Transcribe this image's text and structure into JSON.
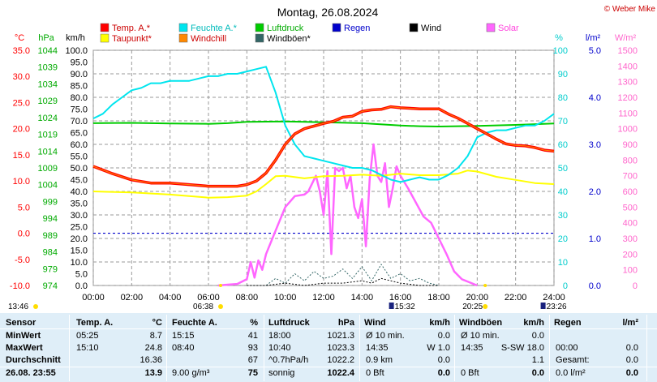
{
  "chart_data": {
    "type": "line",
    "title": "Montag, 26.08.2024",
    "copyright": "© Weber Mike",
    "x_ticks": [
      "00:00",
      "02:00",
      "04:00",
      "06:00",
      "08:00",
      "10:00",
      "12:00",
      "14:00",
      "16:00",
      "18:00",
      "20:00",
      "22:00",
      "24:00"
    ],
    "axes": {
      "temp": {
        "unit": "°C",
        "min": -10,
        "max": 35,
        "ticks": [
          "35.0",
          "30.0",
          "25.0",
          "20.0",
          "15.0",
          "10.0",
          "5.0",
          "0.0",
          "-5.0",
          "-10.0"
        ],
        "color": "#ff0000"
      },
      "pressure": {
        "unit": "hPa",
        "min": 974,
        "max": 1044,
        "ticks": [
          "1044",
          "1039",
          "1034",
          "1029",
          "1024",
          "1019",
          "1014",
          "1009",
          "1004",
          "999",
          "994",
          "989",
          "984",
          "979",
          "974"
        ],
        "color": "#00aa00"
      },
      "wind": {
        "unit": "km/h",
        "min": 0,
        "max": 100,
        "ticks": [
          "100.0",
          "95.0",
          "90.0",
          "85.0",
          "80.0",
          "75.0",
          "70.0",
          "65.0",
          "60.0",
          "55.0",
          "50.0",
          "45.0",
          "40.0",
          "35.0",
          "30.0",
          "25.0",
          "20.0",
          "15.0",
          "10.0",
          "5.0",
          "0.0"
        ],
        "color": "#000000"
      },
      "humidity": {
        "unit": "%",
        "min": 0,
        "max": 100,
        "ticks": [
          "100",
          "90",
          "80",
          "70",
          "60",
          "50",
          "40",
          "30",
          "20",
          "10",
          "0"
        ],
        "color": "#00cccc"
      },
      "rain": {
        "unit": "l/m²",
        "min": 0,
        "max": 5,
        "ticks": [
          "5.0",
          "4.0",
          "3.0",
          "2.0",
          "1.0",
          "0.0"
        ],
        "color": "#0000cc"
      },
      "solar": {
        "unit": "W/m²",
        "min": 0,
        "max": 1500,
        "ticks": [
          "1500",
          "1400",
          "1300",
          "1200",
          "1100",
          "1000",
          "900",
          "800",
          "700",
          "600",
          "500",
          "400",
          "300",
          "200",
          "100",
          "0"
        ],
        "color": "#ff66cc"
      }
    },
    "legend": [
      {
        "name": "Temp. A.*",
        "color": "#ff0000"
      },
      {
        "name": "Feuchte A.*",
        "color": "#00e5ee"
      },
      {
        "name": "Luftdruck",
        "color": "#00cc00"
      },
      {
        "name": "Regen",
        "color": "#0000cc"
      },
      {
        "name": "Wind",
        "color": "#000000"
      },
      {
        "name": "Solar",
        "color": "#ff66ff"
      },
      {
        "name": "Taupunkt*",
        "color": "#ffff00"
      },
      {
        "name": "Windchill",
        "color": "#ff8800"
      },
      {
        "name": "Windböen*",
        "color": "#336666"
      }
    ],
    "series": [
      {
        "name": "Temp. A.*",
        "axis": "temp",
        "color": "#ff0000",
        "x": [
          0,
          1,
          2,
          3,
          4,
          5,
          6,
          7,
          7.5,
          8,
          8.5,
          9,
          9.5,
          10,
          10.5,
          11,
          11.5,
          12,
          12.5,
          13,
          13.5,
          14,
          14.5,
          15,
          15.5,
          16,
          16.5,
          17,
          17.5,
          18,
          18.5,
          19,
          19.5,
          20,
          20.5,
          21,
          21.5,
          22,
          22.5,
          23,
          23.5,
          24
        ],
        "y": [
          12.8,
          11.4,
          10.2,
          9.6,
          9.6,
          9.3,
          9.0,
          9.0,
          9.0,
          9.3,
          10.0,
          11.5,
          14.0,
          17.0,
          19.0,
          20.0,
          20.5,
          21.0,
          21.4,
          22.2,
          22.4,
          23.3,
          23.6,
          23.7,
          24.2,
          24.0,
          23.9,
          23.8,
          23.8,
          23.8,
          22.8,
          22.0,
          21.0,
          20.0,
          19.0,
          18.0,
          17.1,
          16.8,
          16.7,
          16.4,
          15.9,
          15.7
        ]
      },
      {
        "name": "Feuchte A.*",
        "axis": "humidity",
        "color": "#00e5ee",
        "x": [
          0,
          0.5,
          1,
          1.5,
          2,
          2.5,
          3,
          3.5,
          4,
          5,
          6,
          6.5,
          7,
          7.5,
          8,
          8.5,
          9,
          9.5,
          10,
          10.5,
          11,
          11.5,
          12,
          12.5,
          13,
          13.5,
          14,
          14.5,
          15,
          15.5,
          16,
          16.5,
          17,
          17.5,
          18,
          18.5,
          19,
          19.5,
          20,
          20.5,
          21,
          21.5,
          22,
          22.5,
          23,
          23.5,
          24
        ],
        "y": [
          71,
          73,
          77,
          80,
          83,
          84,
          86,
          86,
          87,
          87,
          89,
          89,
          90,
          90,
          91,
          92,
          93,
          82,
          68,
          60,
          55,
          54,
          53,
          52,
          51,
          50,
          50,
          49,
          47,
          45,
          44,
          45,
          46,
          45,
          45,
          47,
          50,
          55,
          63,
          65,
          66,
          66,
          67,
          68,
          68,
          70,
          73
        ]
      },
      {
        "name": "Luftdruck",
        "axis": "pressure",
        "color": "#00cc00",
        "x": [
          0,
          2,
          4,
          6,
          7,
          8,
          10,
          12,
          14,
          16,
          17,
          18,
          20,
          22,
          24
        ],
        "y": [
          1022.3,
          1022.4,
          1022.2,
          1022.1,
          1022.3,
          1022.7,
          1022.8,
          1022.6,
          1022.3,
          1021.6,
          1021.4,
          1021.3,
          1021.5,
          1021.8,
          1022.2
        ]
      },
      {
        "name": "Taupunkt*",
        "axis": "temp",
        "color": "#ffff00",
        "x": [
          0,
          2,
          4,
          6,
          7,
          8,
          8.5,
          9,
          9.5,
          10,
          11,
          12,
          13,
          14,
          15,
          16,
          17,
          18,
          19,
          19.5,
          20,
          21,
          22,
          23,
          24
        ],
        "y": [
          8.0,
          7.8,
          7.4,
          6.8,
          6.9,
          7.2,
          8.0,
          9.4,
          10.9,
          11.0,
          10.5,
          10.9,
          11.0,
          11.2,
          11.0,
          11.4,
          11.1,
          11.1,
          11.4,
          12.0,
          11.8,
          10.8,
          10.2,
          9.6,
          9.4
        ]
      },
      {
        "name": "Solar",
        "axis": "solar",
        "color": "#ff66ff",
        "x": [
          6.5,
          7,
          7.5,
          8,
          8.2,
          8.4,
          8.6,
          8.8,
          9,
          9.5,
          10,
          10.5,
          11,
          11.2,
          11.4,
          11.6,
          11.8,
          12,
          12.2,
          12.4,
          12.6,
          12.8,
          13,
          13.2,
          13.4,
          13.6,
          13.8,
          14,
          14.2,
          14.4,
          14.6,
          14.8,
          15,
          15.2,
          15.4,
          15.6,
          15.8,
          16,
          16.4,
          16.8,
          17.2,
          17.6,
          18,
          18.4,
          18.8,
          19.2,
          19.6,
          20
        ],
        "y": [
          0,
          5,
          10,
          40,
          150,
          50,
          160,
          100,
          200,
          350,
          500,
          570,
          580,
          600,
          650,
          700,
          600,
          450,
          730,
          200,
          750,
          730,
          750,
          620,
          700,
          500,
          430,
          550,
          250,
          680,
          900,
          700,
          660,
          780,
          500,
          620,
          760,
          700,
          620,
          530,
          440,
          400,
          300,
          200,
          90,
          40,
          20,
          0
        ]
      },
      {
        "name": "Windböen*",
        "axis": "wind",
        "color": "#336666",
        "dashed": true,
        "x": [
          8,
          8.5,
          9,
          9.5,
          10,
          10.5,
          11,
          11.5,
          12,
          12.5,
          13,
          13.5,
          14,
          14.5,
          15,
          15.5,
          16,
          16.5,
          17,
          17.5,
          18
        ],
        "y": [
          0,
          0,
          0,
          3,
          1,
          5,
          2,
          6,
          3,
          4,
          7,
          3,
          8,
          2,
          9,
          3,
          5,
          2,
          3,
          1,
          0
        ]
      },
      {
        "name": "Wind",
        "axis": "wind",
        "color": "#000000",
        "dashed": true,
        "x": [
          8,
          9,
          10,
          11,
          12,
          13,
          14,
          14.5,
          15,
          15.5,
          16,
          17,
          18
        ],
        "y": [
          0,
          0,
          1,
          0,
          1,
          1,
          2,
          1,
          3,
          2,
          1,
          0,
          0
        ]
      }
    ],
    "sun": {
      "sunrise": "06:38",
      "sunset": "20:25",
      "now": "13:46"
    },
    "moon": {
      "rise": "15:32",
      "set": "23:26"
    }
  },
  "table": {
    "headers": [
      "Sensor",
      "Temp. A.",
      "°C",
      "Feuchte A.",
      "%",
      "Luftdruck",
      "hPa",
      "Wind",
      "km/h",
      "Windböen",
      "km/h",
      "Regen",
      "l/m²"
    ],
    "rows": [
      {
        "label": "MinWert",
        "temp_time": "05:25",
        "temp_val": "8.7",
        "hum_time": "15:15",
        "hum_val": "41",
        "press_time": "18:00",
        "press_val": "1021.3",
        "wind_time": "Ø 10 min.",
        "wind_val": "0.0",
        "gust_time": "Ø 10 min.",
        "gust_val": "0.0",
        "rain_time": "",
        "rain_val": ""
      },
      {
        "label": "MaxWert",
        "temp_time": "15:10",
        "temp_val": "24.8",
        "hum_time": "08:40",
        "hum_val": "93",
        "press_time": "10:40",
        "press_val": "1023.3",
        "wind_time": "14:35",
        "wind_val": "W 1.0",
        "gust_time": "14:35",
        "gust_val": "S-SW 18.0",
        "rain_time": "00:00",
        "rain_val": "0.0"
      },
      {
        "label": "Durchschnitt",
        "temp_time": "",
        "temp_val": "16.36",
        "hum_time": "",
        "hum_val": "67",
        "press_time": "^0.7hPa/h",
        "press_val": "1022.2",
        "wind_time": "0.9 km",
        "wind_val": "0.0",
        "gust_time": "",
        "gust_val": "1.1",
        "rain_time": "Gesamt:",
        "rain_val": "0.0"
      },
      {
        "label": "26.08. 23:55",
        "temp_time": "",
        "temp_val": "13.9",
        "hum_time": "9.00 g/m³",
        "hum_val": "75",
        "press_time": "sonnig",
        "press_val": "1022.4",
        "wind_time": "0 Bft",
        "wind_val": "0.0",
        "gust_time": "0 Bft",
        "gust_val": "0.0",
        "rain_time": "0.0 l/m²",
        "rain_val": "0.0"
      }
    ]
  }
}
